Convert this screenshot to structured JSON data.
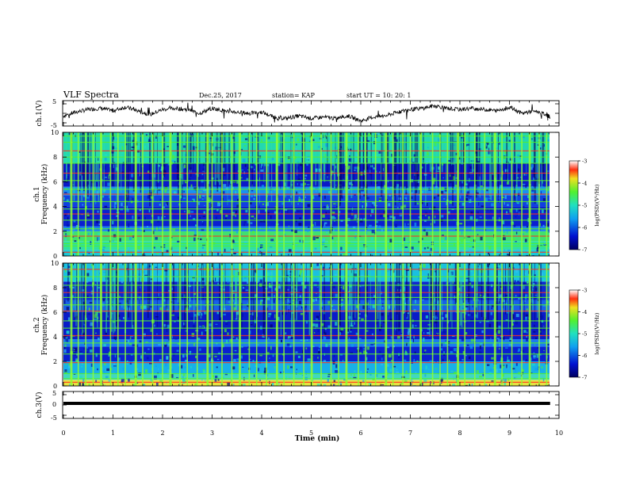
{
  "header": {
    "title": "VLF Spectra",
    "date": "Dec.25, 2017",
    "station": "station= KAP",
    "start": "start  UT =   10: 20: 1"
  },
  "chart_data": [
    {
      "type": "line",
      "panel": "ch1-waveform",
      "ylabel": "ch.1(V)",
      "ylim": [
        -5,
        5
      ],
      "ytick_labels": [
        "5",
        "-5"
      ],
      "xlim": [
        0,
        10
      ],
      "series": [
        {
          "x": [
            0.0,
            0.25,
            0.5,
            0.75,
            1.0,
            1.25,
            1.5,
            1.75,
            2.0,
            2.25,
            2.5,
            2.75,
            3.0,
            3.25,
            3.5,
            3.75,
            4.0,
            4.25,
            4.5,
            4.75,
            5.0,
            5.25,
            5.5,
            5.75,
            6.0,
            6.25,
            6.5,
            6.75,
            7.0,
            7.25,
            7.5,
            7.75,
            8.0,
            8.25,
            8.5,
            8.75,
            9.0,
            9.25,
            9.5,
            9.75,
            9.82
          ],
          "values": [
            -1.0,
            0.5,
            1.5,
            2.0,
            1.0,
            2.5,
            1.0,
            -0.5,
            1.5,
            2.0,
            1.5,
            0.0,
            2.0,
            1.0,
            0.5,
            0.0,
            0.5,
            -1.5,
            -2.0,
            -1.0,
            -2.0,
            -1.5,
            -2.0,
            -1.0,
            -3.0,
            -1.5,
            -1.0,
            0.5,
            1.5,
            2.0,
            3.0,
            2.0,
            1.5,
            2.0,
            1.5,
            1.0,
            2.5,
            0.0,
            1.0,
            -0.5,
            -1.5
          ]
        }
      ]
    },
    {
      "type": "heatmap",
      "panel": "ch1-spectrogram",
      "ylabel": "ch.1\nFrequency (kHz)",
      "ylim": [
        0,
        10
      ],
      "ytick_labels": [
        "0",
        "2",
        "4",
        "6",
        "8",
        "10"
      ],
      "xlim": [
        0,
        10
      ],
      "colorbar": {
        "label": "log(PSD)(V²/Hz)",
        "range": [
          -7,
          -3
        ],
        "tick_labels": [
          "-3",
          "-4",
          "-5",
          "-6",
          "-7"
        ]
      },
      "bands": [
        {
          "from": 0.0,
          "to": 0.5,
          "color": "#19c8d8"
        },
        {
          "from": 0.5,
          "to": 1.2,
          "color": "#2fe0a0"
        },
        {
          "from": 1.2,
          "to": 2.0,
          "color": "#40e070"
        },
        {
          "from": 2.0,
          "to": 2.4,
          "color": "#1a7ef0"
        },
        {
          "from": 2.4,
          "to": 4.0,
          "color": "#0a1fd0"
        },
        {
          "from": 4.0,
          "to": 4.9,
          "color": "#1040e0"
        },
        {
          "from": 4.9,
          "to": 5.6,
          "color": "#1a90f0"
        },
        {
          "from": 5.6,
          "to": 7.5,
          "color": "#0a1ac8"
        },
        {
          "from": 7.5,
          "to": 10.0,
          "color": "#22d8b0"
        }
      ],
      "lines_khz": [
        0.3,
        0.8,
        1.0,
        1.6,
        2.2,
        2.9,
        3.4,
        3.8,
        4.4,
        5.0,
        5.4,
        6.1,
        6.7,
        7.5,
        8.0,
        8.5,
        9.2,
        9.7
      ],
      "spikes_min": [
        0.15,
        0.3,
        0.45,
        0.6,
        0.75,
        0.95,
        1.1,
        1.25,
        1.45,
        1.6,
        1.8,
        2.0,
        2.15,
        2.35,
        2.5,
        2.7,
        2.9,
        3.0,
        3.2,
        3.4,
        3.55,
        3.75,
        3.9,
        4.1,
        4.3,
        4.45,
        4.65,
        4.85,
        5.0,
        5.2,
        5.4,
        5.55,
        5.7,
        5.95,
        6.1,
        6.3,
        6.5,
        6.65,
        6.85,
        7.0,
        7.2,
        7.45,
        7.6,
        7.75,
        7.95,
        8.1,
        8.3,
        8.5,
        8.7,
        8.85,
        9.05,
        9.25,
        9.4,
        9.6,
        9.75
      ]
    },
    {
      "type": "heatmap",
      "panel": "ch2-spectrogram",
      "ylabel": "ch.2\nFrequency (kHz)",
      "ylim": [
        0,
        10
      ],
      "ytick_labels": [
        "0",
        "2",
        "4",
        "6",
        "8",
        "10"
      ],
      "xlim": [
        0,
        10
      ],
      "colorbar": {
        "label": "log(PSD)(V²/Hz)",
        "range": [
          -7,
          -3
        ],
        "tick_labels": [
          "-3",
          "-4",
          "-5",
          "-6",
          "-7"
        ]
      },
      "bands": [
        {
          "from": 0.0,
          "to": 0.5,
          "color": "#e8e040"
        },
        {
          "from": 0.5,
          "to": 1.0,
          "color": "#40d8c0"
        },
        {
          "from": 1.0,
          "to": 2.0,
          "color": "#18b0e8"
        },
        {
          "from": 2.0,
          "to": 3.2,
          "color": "#0a20d0"
        },
        {
          "from": 3.2,
          "to": 3.8,
          "color": "#1a7cf0"
        },
        {
          "from": 3.8,
          "to": 6.0,
          "color": "#0a1cc8"
        },
        {
          "from": 6.0,
          "to": 7.0,
          "color": "#1860e8"
        },
        {
          "from": 7.0,
          "to": 8.5,
          "color": "#0e28d0"
        },
        {
          "from": 8.5,
          "to": 10.0,
          "color": "#1ac0e0"
        }
      ],
      "lines_khz": [
        0.3,
        0.6,
        1.0,
        1.9,
        2.6,
        3.5,
        4.1,
        4.7,
        5.3,
        6.1,
        6.6,
        7.2,
        7.6,
        8.2,
        8.9,
        9.5
      ],
      "spikes_min": [
        0.15,
        0.3,
        0.45,
        0.6,
        0.75,
        0.95,
        1.1,
        1.25,
        1.45,
        1.6,
        1.8,
        2.0,
        2.15,
        2.35,
        2.5,
        2.7,
        2.9,
        3.0,
        3.2,
        3.4,
        3.55,
        3.75,
        3.9,
        4.1,
        4.3,
        4.45,
        4.65,
        4.85,
        5.0,
        5.2,
        5.4,
        5.55,
        5.7,
        5.95,
        6.1,
        6.3,
        6.5,
        6.65,
        6.85,
        7.0,
        7.2,
        7.45,
        7.6,
        7.75,
        7.95,
        8.1,
        8.3,
        8.5,
        8.7,
        8.85,
        9.05,
        9.25,
        9.4,
        9.6,
        9.75
      ]
    },
    {
      "type": "line",
      "panel": "ch3-waveform",
      "ylabel": "ch.3(V)",
      "ylim": [
        -5,
        5
      ],
      "ytick_labels": [
        "5",
        "0",
        "-5"
      ],
      "xlim": [
        0,
        10
      ],
      "xlabel": "Time (min)",
      "xtick_labels": [
        "0",
        "1",
        "2",
        "3",
        "4",
        "5",
        "6",
        "7",
        "8",
        "9",
        "10"
      ],
      "series": [
        {
          "x": [
            0,
            9.82
          ],
          "values": [
            0.6,
            0.6
          ]
        }
      ]
    }
  ],
  "colors": {
    "trace": "#000000",
    "hot_line": "#ff3020",
    "spike": "#90ff30"
  }
}
